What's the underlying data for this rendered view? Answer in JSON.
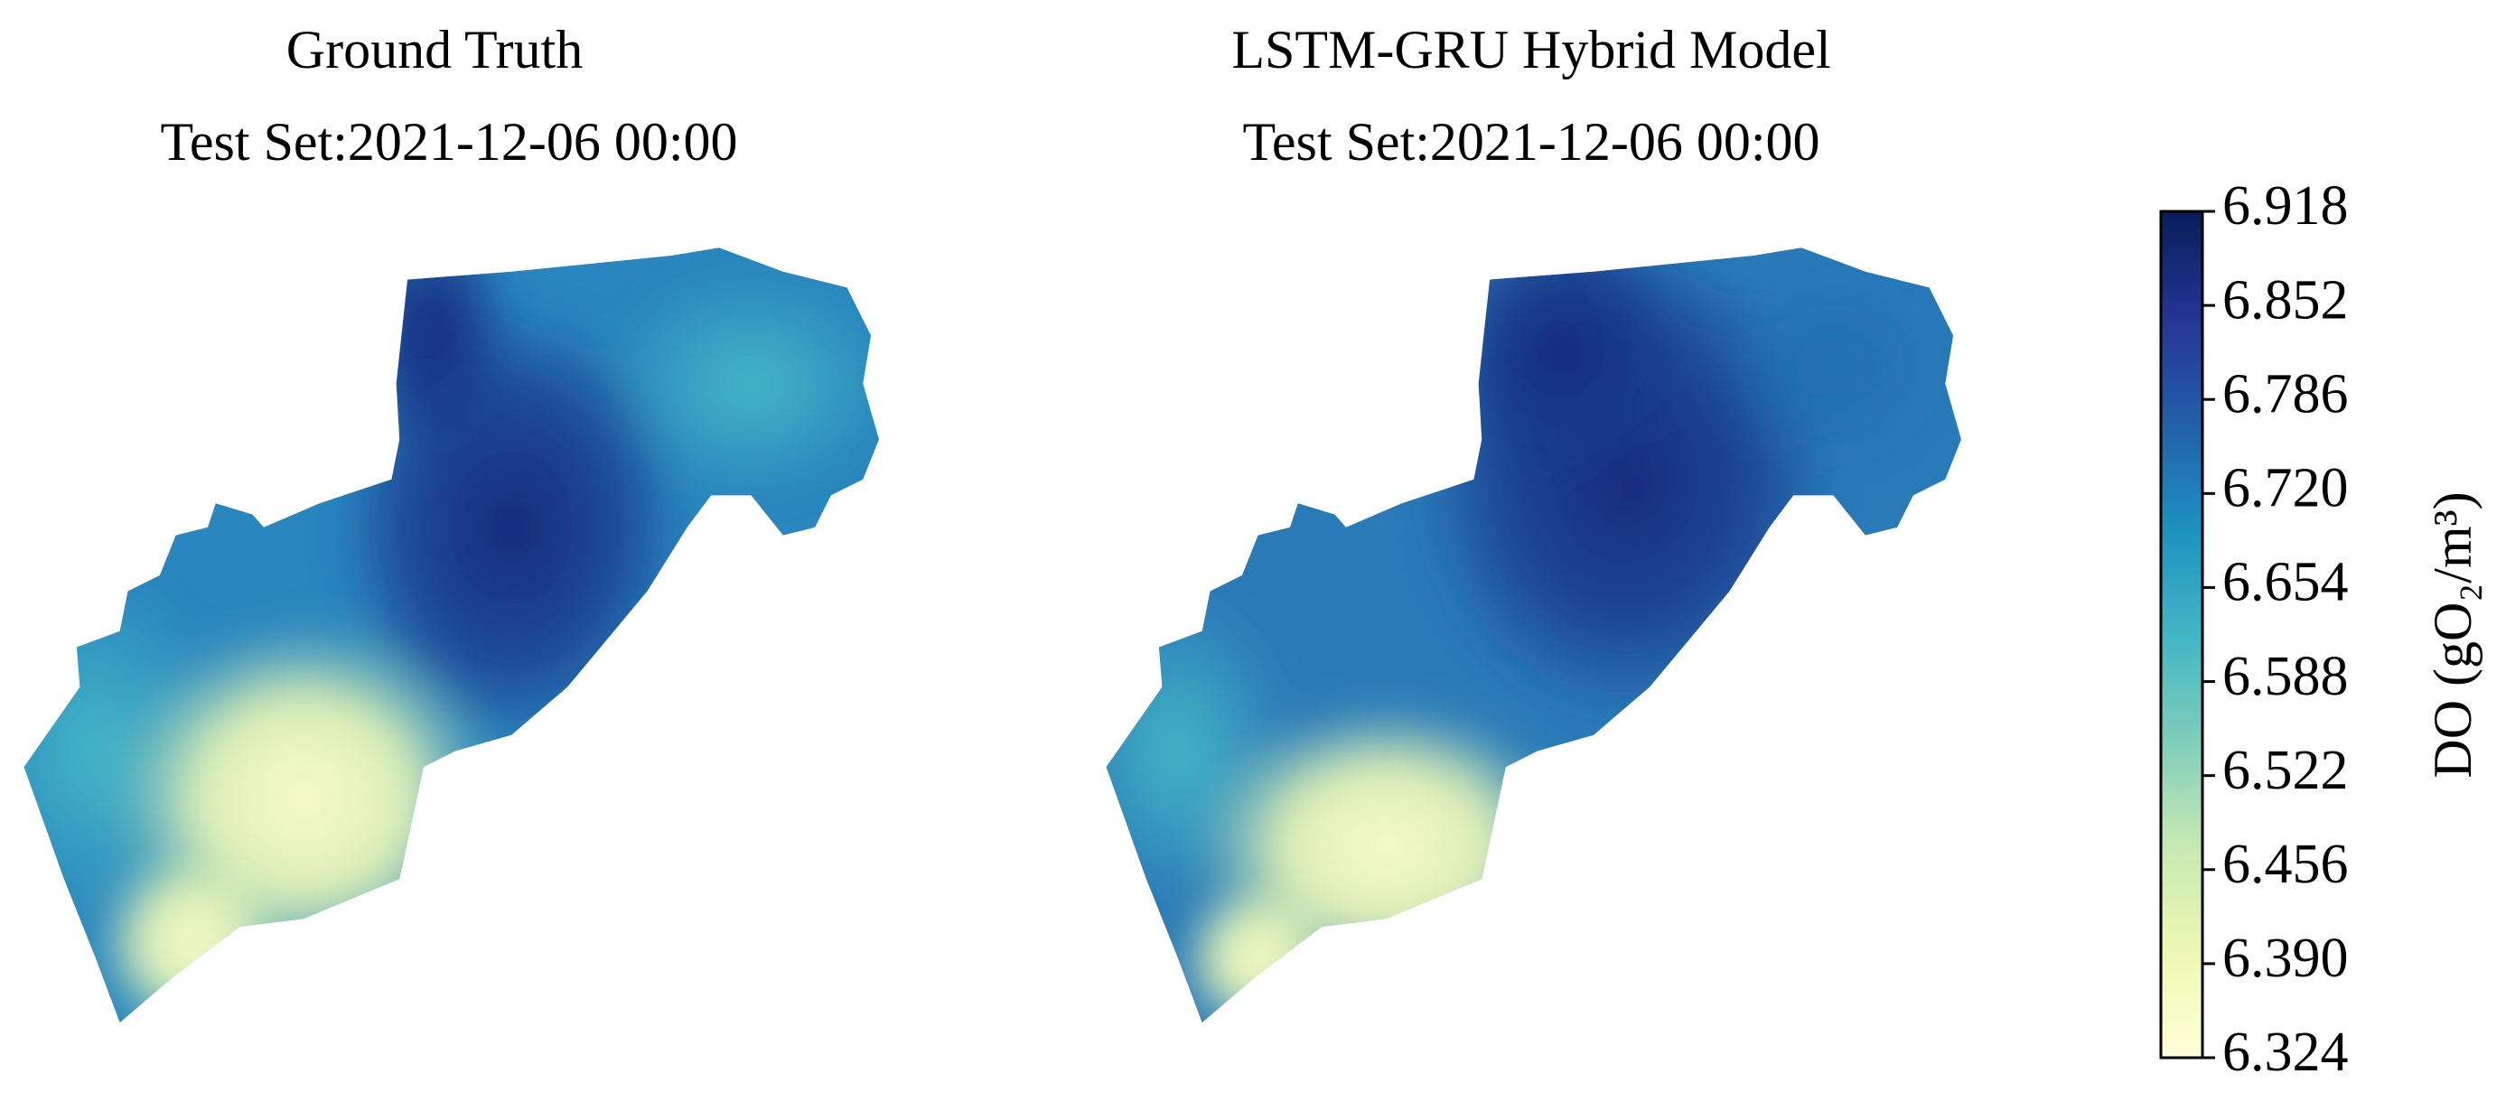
{
  "panels": [
    {
      "title": "Ground Truth",
      "subtitle": "Test Set:2021-12-06 00:00"
    },
    {
      "title": "LSTM-GRU Hybrid Model",
      "subtitle": "Test Set:2021-12-06 00:00"
    }
  ],
  "colorbar": {
    "label": "DO (gO₂/m³)",
    "clim": [
      6.324,
      6.918
    ],
    "ticks": [
      6.918,
      6.852,
      6.786,
      {
        "value": 6.72,
        "label": "6.720"
      },
      6.654,
      6.588,
      6.522,
      6.456,
      {
        "value": 6.39,
        "label": "6.390"
      },
      6.324
    ]
  }
}
